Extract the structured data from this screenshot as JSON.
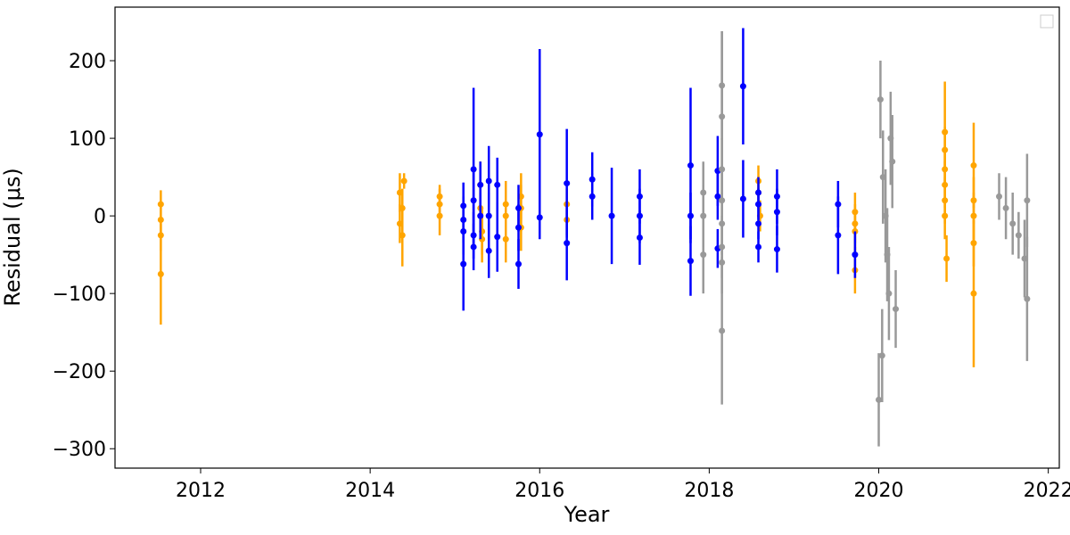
{
  "chart_data": {
    "type": "scatter",
    "xlabel": "Year",
    "ylabel": "Residual (μs)",
    "xlim": [
      2010.99,
      2022.13
    ],
    "ylim": [
      -325,
      269
    ],
    "xticks": [
      2012,
      2014,
      2016,
      2018,
      2020,
      2022
    ],
    "yticks": [
      {
        "value": -300,
        "label": "−300"
      },
      {
        "value": -200,
        "label": "−200"
      },
      {
        "value": -100,
        "label": "−100"
      },
      0,
      100,
      200
    ],
    "legend": "upper right",
    "series": [
      {
        "color": "#ffa500",
        "x": [
          2011.53,
          2011.53,
          2011.53,
          2011.53,
          2014.35,
          2014.38,
          2014.35,
          2014.38,
          2014.4,
          2014.82,
          2014.82,
          2014.82,
          2015.3,
          2015.3,
          2015.32,
          2015.32,
          2015.6,
          2015.6,
          2015.6,
          2015.78,
          2015.78,
          2015.78,
          2016.32,
          2016.32,
          2018.58,
          2018.58,
          2018.6,
          2019.72,
          2019.72,
          2019.72,
          2019.72,
          2020.78,
          2020.78,
          2020.78,
          2020.78,
          2020.78,
          2020.78,
          2020.8,
          2021.12,
          2021.12,
          2021.12,
          2021.12,
          2021.12
        ],
        "values": [
          15,
          -5,
          -25,
          -75,
          30,
          10,
          -10,
          -25,
          45,
          25,
          15,
          0,
          40,
          10,
          -20,
          -30,
          15,
          0,
          -30,
          25,
          10,
          -15,
          15,
          -5,
          45,
          30,
          0,
          5,
          -10,
          -20,
          -70,
          108,
          85,
          60,
          40,
          20,
          0,
          -55,
          65,
          20,
          0,
          -35,
          -100
        ],
        "errors": [
          18,
          20,
          20,
          65,
          25,
          25,
          25,
          40,
          10,
          15,
          20,
          25,
          30,
          30,
          30,
          30,
          30,
          30,
          30,
          30,
          30,
          30,
          20,
          20,
          20,
          20,
          20,
          25,
          25,
          25,
          30,
          65,
          30,
          30,
          30,
          30,
          30,
          30,
          55,
          30,
          30,
          30,
          95
        ]
      },
      {
        "color": "#0000ff",
        "x": [
          2015.1,
          2015.1,
          2015.1,
          2015.1,
          2015.22,
          2015.22,
          2015.22,
          2015.22,
          2015.3,
          2015.3,
          2015.4,
          2015.4,
          2015.4,
          2015.5,
          2015.5,
          2015.75,
          2015.75,
          2015.75,
          2016.0,
          2016.0,
          2016.32,
          2016.32,
          2016.62,
          2016.62,
          2016.85,
          2017.18,
          2017.18,
          2017.18,
          2017.78,
          2017.78,
          2017.78,
          2018.1,
          2018.1,
          2018.1,
          2018.4,
          2018.4,
          2018.58,
          2018.58,
          2018.58,
          2018.58,
          2018.8,
          2018.8,
          2018.8,
          2019.52,
          2019.52,
          2019.72
        ],
        "values": [
          13,
          -5,
          -20,
          -62,
          60,
          20,
          -25,
          -40,
          40,
          0,
          45,
          0,
          -45,
          40,
          -27,
          10,
          -15,
          -62,
          105,
          -2,
          42,
          -35,
          47,
          25,
          0,
          25,
          0,
          -28,
          65,
          0,
          -58,
          58,
          25,
          -42,
          167,
          22,
          30,
          15,
          -10,
          -40,
          25,
          5,
          -43,
          15,
          -25,
          -50
        ],
        "errors": [
          30,
          30,
          30,
          60,
          105,
          40,
          30,
          30,
          30,
          30,
          45,
          30,
          35,
          35,
          45,
          30,
          30,
          32,
          110,
          28,
          70,
          48,
          35,
          30,
          62,
          35,
          35,
          35,
          100,
          30,
          45,
          45,
          30,
          25,
          75,
          50,
          20,
          20,
          20,
          20,
          35,
          30,
          30,
          30,
          50,
          30
        ]
      },
      {
        "color": "#999999",
        "x": [
          2017.93,
          2017.93,
          2017.93,
          2018.15,
          2018.15,
          2018.15,
          2018.15,
          2018.15,
          2018.15,
          2018.15,
          2018.15,
          2020.02,
          2020.05,
          2020.08,
          2020.1,
          2020.12,
          2020.14,
          2020.16,
          2020.0,
          2020.04,
          2020.2,
          2021.42,
          2021.5,
          2021.58,
          2021.65,
          2021.72,
          2021.75,
          2021.75
        ],
        "values": [
          30,
          0,
          -50,
          168,
          128,
          60,
          20,
          -10,
          -40,
          -60,
          -148,
          150,
          50,
          0,
          -50,
          -100,
          100,
          70,
          -237,
          -180,
          -120,
          25,
          10,
          -10,
          -25,
          -55,
          -107,
          20
        ],
        "errors": [
          40,
          40,
          50,
          70,
          110,
          40,
          40,
          40,
          40,
          40,
          95,
          50,
          60,
          60,
          60,
          60,
          60,
          60,
          60,
          60,
          50,
          30,
          40,
          40,
          30,
          50,
          80,
          60
        ]
      }
    ]
  }
}
